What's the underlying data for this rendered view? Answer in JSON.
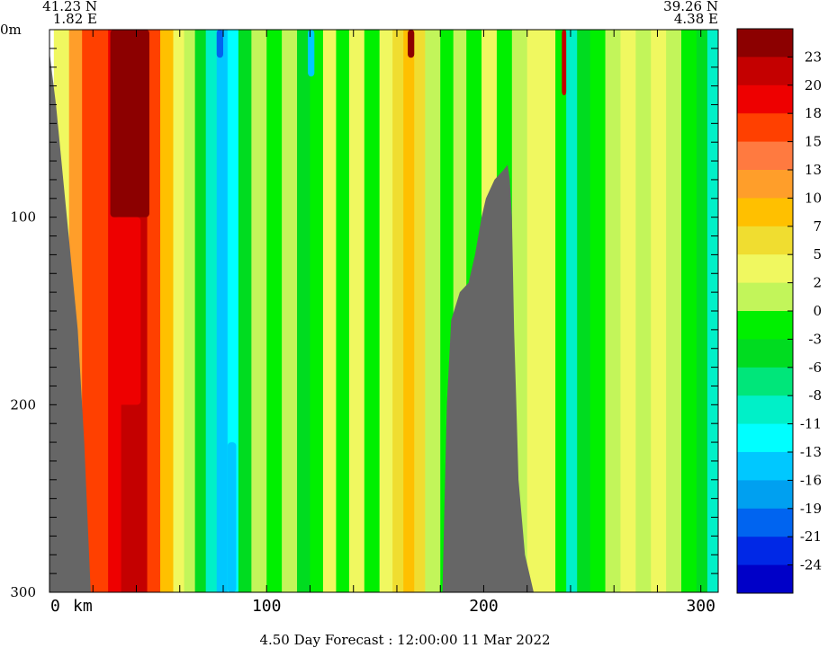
{
  "chart_data": {
    "type": "heatmap",
    "title": "",
    "footer": "4.50 Day Forecast : 12:00:00  11 Mar 2022",
    "start_point": {
      "lat": "41.23 N",
      "lon": "1.82 E"
    },
    "end_point": {
      "lat": "39.26 N",
      "lon": "4.38 E"
    },
    "x_axis": {
      "unit_label": "km",
      "ticks": [
        0,
        100,
        200,
        300
      ],
      "range": [
        0,
        308
      ]
    },
    "y_axis": {
      "top_label": "0m",
      "ticks": [
        100,
        200,
        300
      ],
      "range": [
        0,
        300
      ],
      "inverted": true
    },
    "colorbar": {
      "labels": [
        "23",
        "20",
        "18",
        "15",
        "13",
        "10",
        "7",
        "5",
        "2",
        "0",
        "-3",
        "-6",
        "-8",
        "-11",
        "-13",
        "-16",
        "-19",
        "-21",
        "-24"
      ],
      "colors": [
        "#8c0000",
        "#c40000",
        "#ee0000",
        "#ff4000",
        "#ff7a40",
        "#ff9e2a",
        "#ffc000",
        "#f0dd30",
        "#f0f860",
        "#c2f55a",
        "#00f000",
        "#00dc20",
        "#00e67a",
        "#00f0c8",
        "#00ffff",
        "#00c8ff",
        "#00a0f0",
        "#0064f0",
        "#0028e6",
        "#0000c8"
      ]
    },
    "columns": [
      {
        "x0": 2,
        "x1": 9,
        "v": 3
      },
      {
        "x0": 9,
        "x1": 15,
        "v": 12
      },
      {
        "x0": 15,
        "x1": 21,
        "v": 15
      },
      {
        "x0": 21,
        "x1": 27,
        "v": 17
      },
      {
        "x0": 27,
        "x1": 33,
        "v": 19
      },
      {
        "x0": 33,
        "x1": 39,
        "v": 22
      },
      {
        "x0": 39,
        "x1": 45,
        "v": 21
      },
      {
        "x0": 45,
        "x1": 51,
        "v": 15
      },
      {
        "x0": 51,
        "x1": 57,
        "v": 8
      },
      {
        "x0": 57,
        "x1": 62,
        "v": 3
      },
      {
        "x0": 62,
        "x1": 67,
        "v": 0
      },
      {
        "x0": 67,
        "x1": 72,
        "v": -4
      },
      {
        "x0": 72,
        "x1": 77,
        "v": -10
      },
      {
        "x0": 77,
        "x1": 82,
        "v": -14
      },
      {
        "x0": 82,
        "x1": 87,
        "v": -12
      },
      {
        "x0": 87,
        "x1": 93,
        "v": -6
      },
      {
        "x0": 93,
        "x1": 100,
        "v": 1
      },
      {
        "x0": 100,
        "x1": 107,
        "v": -3
      },
      {
        "x0": 107,
        "x1": 114,
        "v": 1
      },
      {
        "x0": 114,
        "x1": 120,
        "v": -5
      },
      {
        "x0": 120,
        "x1": 126,
        "v": -2
      },
      {
        "x0": 126,
        "x1": 132,
        "v": 2
      },
      {
        "x0": 132,
        "x1": 138,
        "v": -2
      },
      {
        "x0": 138,
        "x1": 145,
        "v": 3
      },
      {
        "x0": 145,
        "x1": 152,
        "v": -2
      },
      {
        "x0": 152,
        "x1": 158,
        "v": 3
      },
      {
        "x0": 158,
        "x1": 163,
        "v": 6
      },
      {
        "x0": 163,
        "x1": 168,
        "v": 9
      },
      {
        "x0": 168,
        "x1": 173,
        "v": 5
      },
      {
        "x0": 173,
        "x1": 180,
        "v": 1
      },
      {
        "x0": 180,
        "x1": 186,
        "v": -3
      },
      {
        "x0": 186,
        "x1": 192,
        "v": 1
      },
      {
        "x0": 192,
        "x1": 199,
        "v": -3
      },
      {
        "x0": 199,
        "x1": 206,
        "v": 2
      },
      {
        "x0": 206,
        "x1": 213,
        "v": -2
      },
      {
        "x0": 213,
        "x1": 220,
        "v": 1
      },
      {
        "x0": 220,
        "x1": 226,
        "v": 4
      },
      {
        "x0": 226,
        "x1": 233,
        "v": 2
      },
      {
        "x0": 233,
        "x1": 238,
        "v": -3
      },
      {
        "x0": 238,
        "x1": 243,
        "v": -11
      },
      {
        "x0": 243,
        "x1": 249,
        "v": -4
      },
      {
        "x0": 249,
        "x1": 256,
        "v": -2
      },
      {
        "x0": 256,
        "x1": 263,
        "v": 1
      },
      {
        "x0": 263,
        "x1": 270,
        "v": 3
      },
      {
        "x0": 270,
        "x1": 277,
        "v": 1
      },
      {
        "x0": 277,
        "x1": 284,
        "v": 3
      },
      {
        "x0": 284,
        "x1": 291,
        "v": 1
      },
      {
        "x0": 291,
        "x1": 298,
        "v": -1
      },
      {
        "x0": 298,
        "x1": 303,
        "v": -6
      },
      {
        "x0": 303,
        "x1": 308,
        "v": -10
      }
    ],
    "blobs": [
      {
        "x0": 28,
        "x1": 46,
        "d0": 0,
        "d1": 100,
        "v": 23
      },
      {
        "x0": 30,
        "x1": 42,
        "d0": 100,
        "d1": 200,
        "v": 18
      },
      {
        "x0": 165,
        "x1": 168,
        "d0": 0,
        "d1": 15,
        "v": 23
      },
      {
        "x0": 77,
        "x1": 80,
        "d0": 0,
        "d1": 15,
        "v": -21
      },
      {
        "x0": 119,
        "x1": 122,
        "d0": 0,
        "d1": 25,
        "v": -16
      },
      {
        "x0": 236,
        "x1": 238,
        "d0": 0,
        "d1": 35,
        "v": 20
      },
      {
        "x0": 82,
        "x1": 86,
        "d0": 220,
        "d1": 300,
        "v": -16
      }
    ],
    "bathymetry": [
      {
        "id": "shelf",
        "points": [
          [
            0,
            12
          ],
          [
            3,
            40
          ],
          [
            8,
            100
          ],
          [
            13,
            160
          ],
          [
            16,
            220
          ],
          [
            19,
            300
          ],
          [
            0,
            300
          ]
        ]
      },
      {
        "id": "seamount",
        "points": [
          [
            181,
            300
          ],
          [
            182,
            250
          ],
          [
            183,
            200
          ],
          [
            185,
            155
          ],
          [
            189,
            140
          ],
          [
            193,
            135
          ],
          [
            196,
            120
          ],
          [
            199,
            100
          ],
          [
            201,
            90
          ],
          [
            205,
            80
          ],
          [
            209,
            75
          ],
          [
            211,
            72
          ],
          [
            212,
            80
          ],
          [
            213,
            100
          ],
          [
            214,
            160
          ],
          [
            215,
            200
          ],
          [
            216,
            240
          ],
          [
            219,
            280
          ],
          [
            223,
            300
          ]
        ]
      }
    ]
  }
}
